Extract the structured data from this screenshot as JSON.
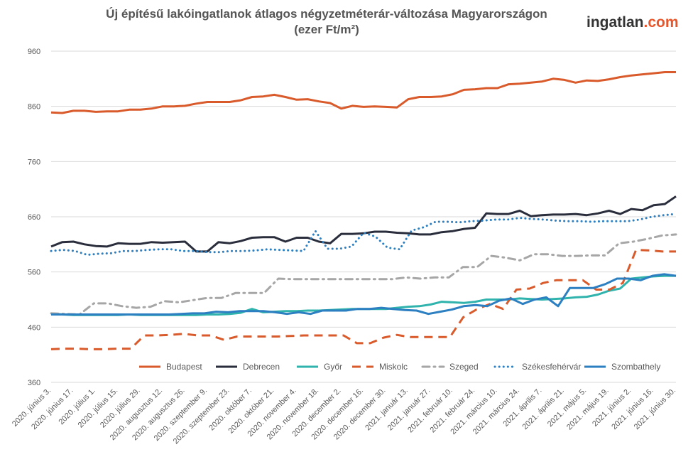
{
  "title": {
    "line1": "Új építésű lakóingatlanok átlagos négyzetméterár-változása Magyarországon",
    "line2": "(ezer Ft/m²)"
  },
  "logo": {
    "left": "ingatlan",
    "right": ".com"
  },
  "chart_data": {
    "type": "line",
    "title": "Új építésű lakóingatlanok átlagos négyzetméterár-változása Magyarországon (ezer Ft/m²)",
    "ylim": [
      360,
      960
    ],
    "yticks": [
      360,
      460,
      560,
      660,
      760,
      860,
      960
    ],
    "grid": true,
    "legend_position": "bottom-right",
    "x_labels": [
      "2020. június 3.",
      "2020. június 17.",
      "2020. július 1.",
      "2020. július 15.",
      "2020. július 29.",
      "2020. augusztus 12.",
      "2020. augusztus 26.",
      "2020. szeptember 9.",
      "2020. szeptember 23.",
      "2020. október 7.",
      "2020. október 21.",
      "2020. november 4.",
      "2020. november 18.",
      "2020. december 2.",
      "2020. december 16.",
      "2020. december 30.",
      "2021. január 13.",
      "2021. január 27.",
      "2021. február 10.",
      "2021. február 24.",
      "2021. március 10.",
      "2021. március 24.",
      "2021. április 7.",
      "2021. április 21.",
      "2021. május 5.",
      "2021. május 19.",
      "2021. június 2.",
      "2021. június 16.",
      "2021. június 30."
    ],
    "series": [
      {
        "name": "Budapest",
        "color": "#d95a2b",
        "dash": "solid",
        "values": [
          849,
          848,
          852,
          852,
          850,
          851,
          851,
          854,
          854,
          856,
          860,
          860,
          861,
          865,
          868,
          868,
          868,
          871,
          877,
          878,
          881,
          877,
          872,
          873,
          869,
          866,
          856,
          861,
          859,
          860,
          859,
          858,
          873,
          877,
          877,
          878,
          882,
          890,
          891,
          893,
          893,
          900,
          901,
          903,
          905,
          910,
          908,
          903,
          907,
          906,
          909,
          913,
          916,
          918,
          920,
          922,
          922
        ]
      },
      {
        "name": "Debrecen",
        "color": "#2a2e3c",
        "dash": "solid",
        "values": [
          606,
          614,
          615,
          610,
          607,
          606,
          612,
          611,
          611,
          614,
          613,
          614,
          615,
          597,
          597,
          614,
          612,
          616,
          622,
          623,
          623,
          615,
          622,
          622,
          615,
          612,
          629,
          629,
          630,
          633,
          633,
          631,
          630,
          628,
          628,
          632,
          634,
          638,
          640,
          666,
          665,
          665,
          671,
          661,
          663,
          664,
          664,
          665,
          663,
          666,
          671,
          665,
          674,
          672,
          681,
          683,
          697
        ]
      },
      {
        "name": "Győr",
        "color": "#2fb3ac",
        "dash": "solid",
        "values": [
          485,
          483,
          482,
          482,
          482,
          482,
          482,
          483,
          482,
          482,
          482,
          482,
          482,
          482,
          483,
          483,
          484,
          486,
          493,
          487,
          488,
          489,
          489,
          490,
          490,
          491,
          492,
          493,
          493,
          493,
          493,
          495,
          497,
          498,
          501,
          506,
          505,
          504,
          506,
          510,
          510,
          510,
          512,
          511,
          510,
          511,
          512,
          514,
          515,
          519,
          526,
          530,
          548,
          550,
          552,
          553,
          553
        ]
      },
      {
        "name": "Miskolc",
        "color": "#d95a2b",
        "dash": "dash",
        "values": [
          420,
          421,
          421,
          420,
          420,
          421,
          421,
          445,
          445,
          446,
          448,
          445,
          445,
          437,
          443,
          443,
          443,
          443,
          444,
          445,
          445,
          445,
          445,
          431,
          431,
          441,
          446,
          442,
          442,
          442,
          442,
          478,
          492,
          502,
          493,
          528,
          530,
          540,
          545,
          545,
          545,
          528,
          528,
          540,
          600,
          599,
          597,
          597
        ]
      },
      {
        "name": "Szeged",
        "color": "#a6a6a6",
        "dash": "dashdot",
        "values": [
          485,
          484,
          483,
          503,
          503,
          498,
          495,
          497,
          507,
          505,
          509,
          513,
          513,
          522,
          522,
          522,
          548,
          547,
          547,
          547,
          547,
          547,
          547,
          547,
          547,
          550,
          548,
          550,
          550,
          569,
          569,
          589,
          586,
          581,
          592,
          592,
          589,
          589,
          590,
          590,
          612,
          615,
          620,
          626,
          628
        ]
      },
      {
        "name": "Székesfehérvár",
        "color": "#2c7fc1",
        "dash": "dot",
        "values": [
          598,
          600,
          598,
          591,
          593,
          594,
          598,
          598,
          600,
          601,
          601,
          598,
          598,
          596,
          596,
          598,
          598,
          599,
          601,
          600,
          599,
          598,
          634,
          602,
          602,
          606,
          631,
          624,
          604,
          601,
          635,
          641,
          651,
          651,
          650,
          652,
          653,
          655,
          655,
          658,
          656,
          655,
          653,
          652,
          652,
          651,
          652,
          652,
          652,
          655,
          660,
          663,
          665
        ]
      },
      {
        "name": "Szombathely",
        "color": "#2c7fc1",
        "dash": "solid",
        "values": [
          483,
          483,
          483,
          483,
          483,
          483,
          483,
          483,
          483,
          483,
          483,
          484,
          485,
          485,
          488,
          487,
          489,
          489,
          489,
          487,
          484,
          487,
          484,
          490,
          490,
          490,
          493,
          493,
          495,
          493,
          491,
          490,
          484,
          488,
          492,
          498,
          500,
          498,
          508,
          512,
          502,
          510,
          514,
          498,
          531,
          531,
          531,
          538,
          548,
          548,
          545,
          553,
          556,
          553
        ]
      }
    ]
  }
}
